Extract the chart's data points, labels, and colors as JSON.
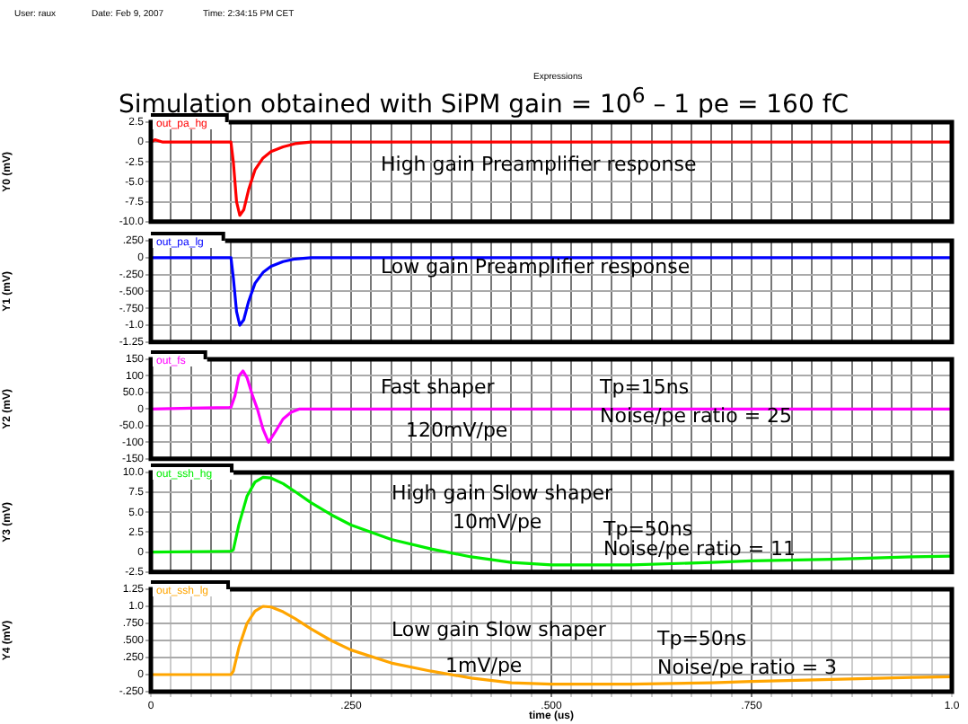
{
  "chart_data": [
    {
      "type": "line",
      "title": "Simulation obtained with SiPM gain = 10$^{6}$  – 1 pe = 160 fC",
      "ylabel": "Y0 (mV)",
      "annotations": [
        "User: raux",
        "Date: Feb 9, 2007",
        "Time: 2:34:15 PM CET",
        "Expressions",
        "High gain Preamplifier response"
      ],
      "legend": "top left",
      "grid": true,
      "marker": "none",
      "line_style": "solid",
      "tick_labels": "y",
      "series": [
        {
          "name": "out_pa_hg",
          "color": "#ff0000",
          "x": [
            0,
            0.005,
            0.015,
            0.1,
            0.103,
            0.107,
            0.111,
            0.116,
            0.122,
            0.13,
            0.14,
            0.15,
            0.165,
            0.18,
            0.2,
            1.0
          ],
          "values": [
            0,
            0.3,
            0,
            0,
            -2.5,
            -7.5,
            -9.2,
            -8.5,
            -6,
            -3.5,
            -2,
            -1.2,
            -0.6,
            -0.2,
            0,
            0
          ]
        }
      ],
      "xlim": [
        0,
        1.0
      ],
      "ylim": [
        -10,
        2.5
      ],
      "yticks": [
        2.5,
        0,
        -2.5,
        {
          "value": -5,
          "label": "-5.0"
        },
        -7.5,
        {
          "value": -10,
          "label": "-10.0"
        }
      ],
      "xticks": [
        0,
        0.025,
        0.05,
        0.075,
        0.1,
        0.125,
        0.15,
        0.175,
        0.2,
        0.225,
        0.25,
        0.275,
        0.3,
        0.325,
        0.35,
        0.375,
        0.4,
        0.425,
        0.45,
        0.475,
        0.5,
        0.525,
        0.55,
        0.575,
        0.6,
        0.625,
        0.65,
        0.675,
        0.7,
        0.725,
        0.75,
        0.775,
        0.8,
        0.825,
        0.85,
        0.875,
        0.9,
        0.925,
        0.95,
        0.975,
        1.0
      ]
    },
    {
      "type": "line",
      "ylabel": "Y1 (mV)",
      "annotations": [
        "Low gain Preamplifier response"
      ],
      "legend": "top left",
      "grid": true,
      "marker": "none",
      "line_style": "solid",
      "tick_labels": "y",
      "series": [
        {
          "name": "out_pa_lg",
          "color": "#0000ff",
          "x": [
            0,
            0.1,
            0.103,
            0.107,
            0.111,
            0.116,
            0.122,
            0.13,
            0.14,
            0.15,
            0.165,
            0.18,
            0.2,
            1.0
          ],
          "values": [
            0,
            0,
            -0.3,
            -0.8,
            -1.0,
            -0.92,
            -0.65,
            -0.38,
            -0.22,
            -0.13,
            -0.06,
            -0.02,
            0,
            0
          ]
        }
      ],
      "xlim": [
        0,
        1.0
      ],
      "ylim": [
        -1.25,
        0.25
      ],
      "yticks": [
        {
          "value": 0.25,
          "label": ".250"
        },
        0,
        {
          "value": -0.25,
          "label": "-.250"
        },
        {
          "value": -0.5,
          "label": "-.500"
        },
        {
          "value": -0.75,
          "label": "-.750"
        },
        {
          "value": -1,
          "label": "-1.0"
        },
        -1.25
      ],
      "xticks": [
        0,
        0.025,
        0.05,
        0.075,
        0.1,
        0.125,
        0.15,
        0.175,
        0.2,
        0.225,
        0.25,
        0.275,
        0.3,
        0.325,
        0.35,
        0.375,
        0.4,
        0.425,
        0.45,
        0.475,
        0.5,
        0.525,
        0.55,
        0.575,
        0.6,
        0.625,
        0.65,
        0.675,
        0.7,
        0.725,
        0.75,
        0.775,
        0.8,
        0.825,
        0.85,
        0.875,
        0.9,
        0.925,
        0.95,
        0.975,
        1.0
      ]
    },
    {
      "type": "line",
      "ylabel": "Y2 (mV)",
      "annotations": [
        "Fast shaper",
        "120mV/pe",
        "Tp=15ns",
        "Noise/pe ratio = 25"
      ],
      "legend": "top left",
      "grid": true,
      "marker": "none",
      "line_style": "solid",
      "tick_labels": "y",
      "series": [
        {
          "name": "out_fs",
          "color": "#ff00ff",
          "x": [
            0,
            0.05,
            0.1,
            0.105,
            0.11,
            0.115,
            0.12,
            0.127,
            0.133,
            0.14,
            0.147,
            0.155,
            0.165,
            0.175,
            0.185,
            1.0
          ],
          "values": [
            0,
            3,
            5,
            40,
            100,
            115,
            95,
            40,
            0,
            -60,
            -100,
            -70,
            -30,
            -10,
            0,
            0
          ]
        }
      ],
      "xlim": [
        0,
        1.0
      ],
      "ylim": [
        -150,
        150
      ],
      "yticks": [
        150,
        100,
        {
          "value": 50,
          "label": "50.0"
        },
        0,
        {
          "value": -50,
          "label": "-50.0"
        },
        -100,
        -150
      ],
      "xticks": [
        0,
        0.025,
        0.05,
        0.075,
        0.1,
        0.125,
        0.15,
        0.175,
        0.2,
        0.225,
        0.25,
        0.275,
        0.3,
        0.325,
        0.35,
        0.375,
        0.4,
        0.425,
        0.45,
        0.475,
        0.5,
        0.525,
        0.55,
        0.575,
        0.6,
        0.625,
        0.65,
        0.675,
        0.7,
        0.725,
        0.75,
        0.775,
        0.8,
        0.825,
        0.85,
        0.875,
        0.9,
        0.925,
        0.95,
        0.975,
        1.0
      ]
    },
    {
      "type": "line",
      "ylabel": "Y3 (mV)",
      "annotations": [
        "High gain Slow shaper",
        "10mV/pe",
        "Tp=50ns",
        "Noise/pe ratio = 11"
      ],
      "legend": "top left",
      "grid": true,
      "marker": "none",
      "line_style": "solid",
      "tick_labels": "y",
      "series": [
        {
          "name": "out_ssh_hg",
          "color": "#00ee00",
          "x": [
            0,
            0.1,
            0.103,
            0.11,
            0.12,
            0.13,
            0.14,
            0.15,
            0.165,
            0.18,
            0.2,
            0.225,
            0.25,
            0.3,
            0.35,
            0.4,
            0.45,
            0.5,
            0.6,
            0.7,
            0.75,
            0.85,
            0.95,
            1.0
          ],
          "values": [
            0,
            0.1,
            0.3,
            3.5,
            7,
            8.8,
            9.4,
            9.3,
            8.6,
            7.6,
            6.2,
            4.7,
            3.4,
            1.6,
            0.4,
            -0.6,
            -1.3,
            -1.6,
            -1.6,
            -1.3,
            -1.1,
            -0.9,
            -0.6,
            -0.5
          ]
        }
      ],
      "xlim": [
        0,
        1.0
      ],
      "ylim": [
        -2.5,
        10
      ],
      "yticks": [
        {
          "value": 10,
          "label": "10.0"
        },
        7.5,
        {
          "value": 5,
          "label": "5.0"
        },
        2.5,
        0,
        -2.5
      ],
      "xticks": [
        0,
        0.025,
        0.05,
        0.075,
        0.1,
        0.125,
        0.15,
        0.175,
        0.2,
        0.225,
        0.25,
        0.275,
        0.3,
        0.325,
        0.35,
        0.375,
        0.4,
        0.425,
        0.45,
        0.475,
        0.5,
        0.525,
        0.55,
        0.575,
        0.6,
        0.625,
        0.65,
        0.675,
        0.7,
        0.725,
        0.75,
        0.775,
        0.8,
        0.825,
        0.85,
        0.875,
        0.9,
        0.925,
        0.95,
        0.975,
        1.0
      ]
    },
    {
      "type": "line",
      "ylabel": "Y4 (mV)",
      "xlabel": "time (us)",
      "annotations": [
        "Low gain Slow shaper",
        "1mV/pe",
        "Tp=50ns",
        "Noise/pe ratio = 3"
      ],
      "legend": "top left",
      "grid": true,
      "marker": "none",
      "line_style": "solid",
      "series": [
        {
          "name": "out_ssh_lg",
          "color": "#ffa500",
          "x": [
            0,
            0.1,
            0.103,
            0.11,
            0.12,
            0.13,
            0.14,
            0.15,
            0.165,
            0.18,
            0.2,
            0.225,
            0.25,
            0.3,
            0.35,
            0.4,
            0.45,
            0.5,
            0.6,
            0.7,
            0.75,
            0.85,
            0.95,
            1.0
          ],
          "values": [
            0,
            0,
            0.05,
            0.4,
            0.75,
            0.93,
            1.0,
            0.99,
            0.92,
            0.82,
            0.67,
            0.5,
            0.36,
            0.17,
            0.05,
            -0.05,
            -0.12,
            -0.14,
            -0.14,
            -0.12,
            -0.1,
            -0.07,
            -0.04,
            -0.03
          ]
        }
      ],
      "xlim": [
        0,
        1.0
      ],
      "ylim": [
        -0.25,
        1.25
      ],
      "yticks": [
        1.25,
        {
          "value": 1,
          "label": "1.0"
        },
        {
          "value": 0.75,
          "label": ".750"
        },
        {
          "value": 0.5,
          "label": ".500"
        },
        {
          "value": 0.25,
          "label": ".250"
        },
        0,
        {
          "value": -0.25,
          "label": "-.250"
        }
      ],
      "xticks": [
        0,
        {
          "value": 0.025,
          "label": null
        },
        {
          "value": 0.05,
          "label": null
        },
        {
          "value": 0.075,
          "label": null
        },
        {
          "value": 0.1,
          "label": null
        },
        {
          "value": 0.125,
          "label": null
        },
        {
          "value": 0.15,
          "label": null
        },
        {
          "value": 0.175,
          "label": null
        },
        {
          "value": 0.2,
          "label": null
        },
        {
          "value": 0.225,
          "label": null
        },
        {
          "value": 0.25,
          "label": ".250"
        },
        {
          "value": 0.275,
          "label": null
        },
        {
          "value": 0.3,
          "label": null
        },
        {
          "value": 0.325,
          "label": null
        },
        {
          "value": 0.35,
          "label": null
        },
        {
          "value": 0.375,
          "label": null
        },
        {
          "value": 0.4,
          "label": null
        },
        {
          "value": 0.425,
          "label": null
        },
        {
          "value": 0.45,
          "label": null
        },
        {
          "value": 0.475,
          "label": null
        },
        {
          "value": 0.5,
          "label": ".500"
        },
        {
          "value": 0.525,
          "label": null
        },
        {
          "value": 0.55,
          "label": null
        },
        {
          "value": 0.575,
          "label": null
        },
        {
          "value": 0.6,
          "label": null
        },
        {
          "value": 0.625,
          "label": null
        },
        {
          "value": 0.65,
          "label": null
        },
        {
          "value": 0.675,
          "label": null
        },
        {
          "value": 0.7,
          "label": null
        },
        {
          "value": 0.725,
          "label": null
        },
        {
          "value": 0.75,
          "label": ".750"
        },
        {
          "value": 0.775,
          "label": null
        },
        {
          "value": 0.8,
          "label": null
        },
        {
          "value": 0.825,
          "label": null
        },
        {
          "value": 0.85,
          "label": null
        },
        {
          "value": 0.875,
          "label": null
        },
        {
          "value": 0.9,
          "label": null
        },
        {
          "value": 0.925,
          "label": null
        },
        {
          "value": 0.95,
          "label": null
        },
        {
          "value": 0.975,
          "label": null
        },
        {
          "value": 1.0,
          "label": "1.0"
        }
      ]
    }
  ]
}
